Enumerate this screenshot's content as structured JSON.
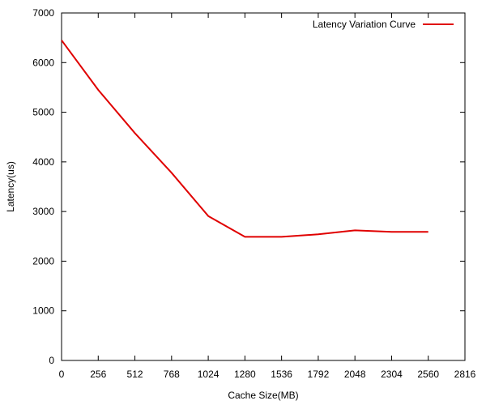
{
  "chart_data": {
    "type": "line",
    "title": "",
    "xlabel": "Cache Size(MB)",
    "ylabel": "Latency(us)",
    "xlim": [
      0,
      2816
    ],
    "ylim": [
      0,
      7000
    ],
    "xticks": [
      0,
      256,
      512,
      768,
      1024,
      1280,
      1536,
      1792,
      2048,
      2304,
      2560,
      2816
    ],
    "yticks": [
      0,
      1000,
      2000,
      3000,
      4000,
      5000,
      6000,
      7000
    ],
    "grid": false,
    "legend_position": "top-right",
    "series": [
      {
        "name": "Latency Variation Curve",
        "color": "#e00000",
        "x": [
          0,
          256,
          512,
          768,
          1024,
          1280,
          1536,
          1792,
          2048,
          2304,
          2560
        ],
        "y": [
          6450,
          5450,
          4580,
          3780,
          2910,
          2490,
          2490,
          2540,
          2620,
          2590,
          2590
        ]
      }
    ]
  }
}
